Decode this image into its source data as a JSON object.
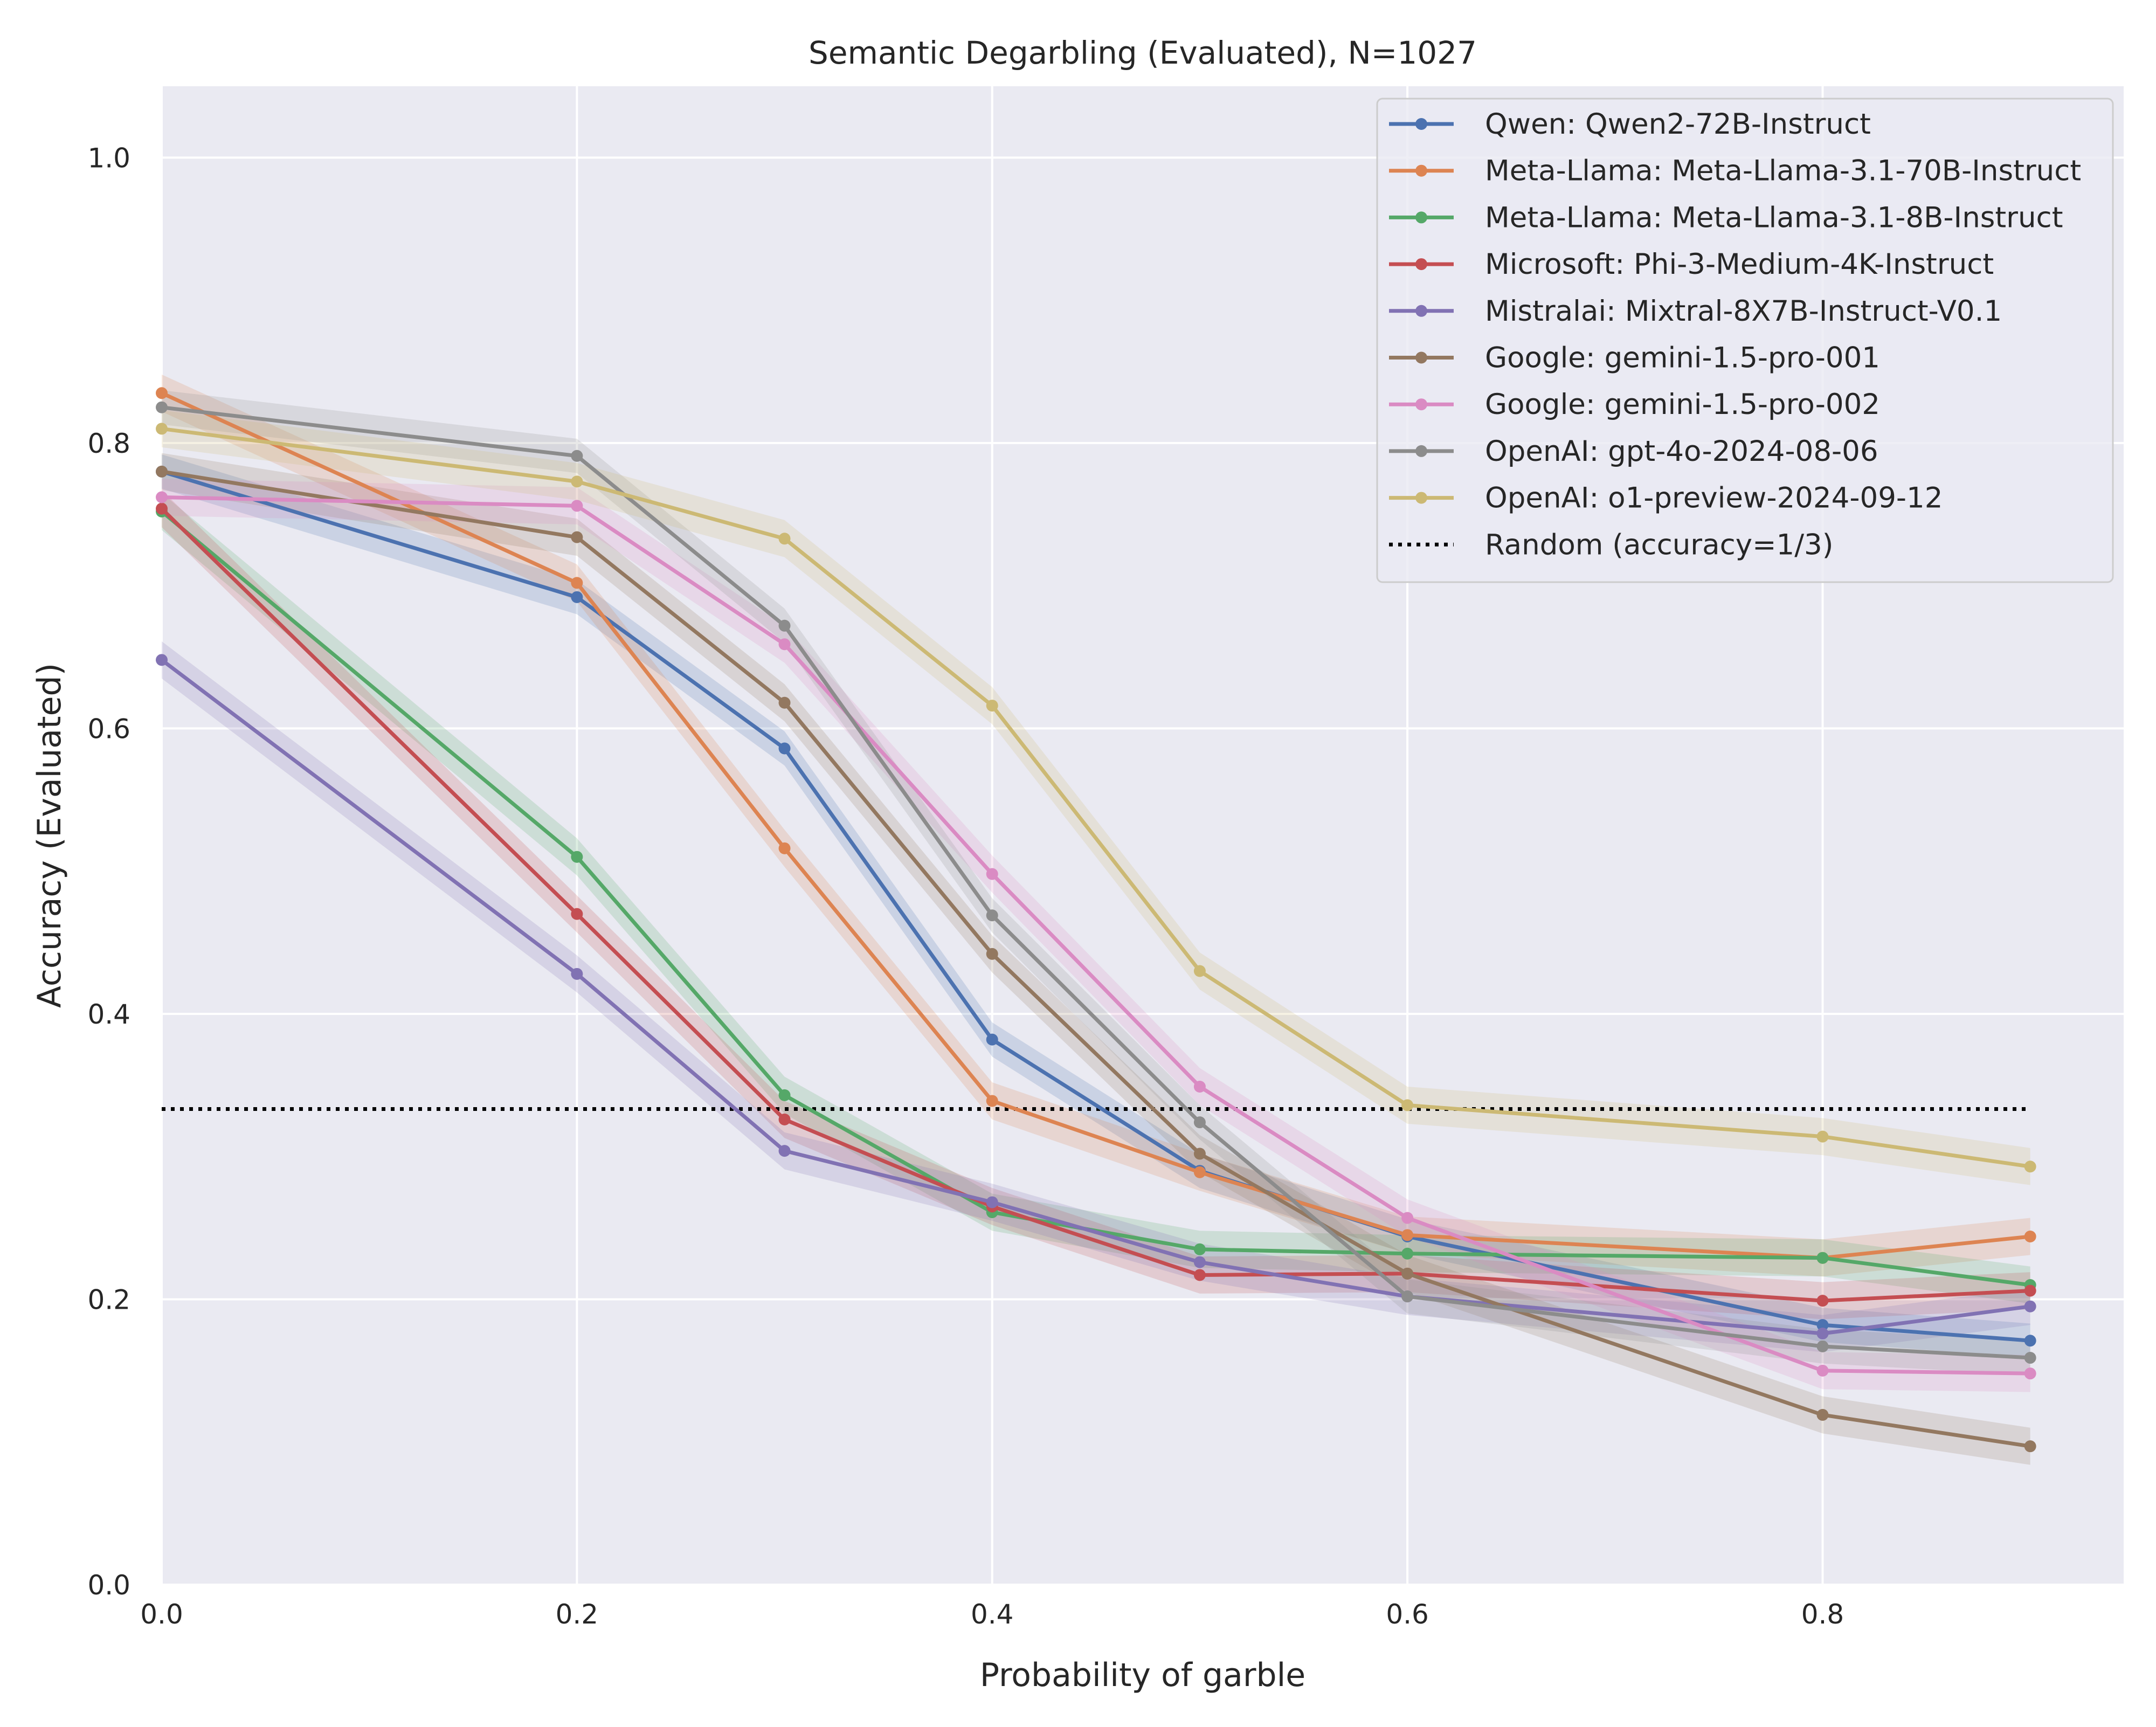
{
  "chart_data": {
    "type": "line",
    "title": "Semantic Degarbling (Evaluated), N=1027",
    "xlabel": "Probability of garble",
    "ylabel": "Accuracy (Evaluated)",
    "xlim": [
      0.0,
      0.945
    ],
    "ylim": [
      0.0,
      1.05
    ],
    "x_ticks": [
      "0.0",
      "0.2",
      "0.4",
      "0.6",
      "0.8"
    ],
    "y_ticks": [
      "0.0",
      "0.2",
      "0.4",
      "0.6",
      "0.8",
      "1.0"
    ],
    "grid": true,
    "legend_position": "top-right",
    "x": [
      0.0,
      0.2,
      0.3,
      0.4,
      0.5,
      0.6,
      0.8,
      0.9
    ],
    "series": [
      {
        "name": "Qwen: Qwen2-72B-Instruct",
        "color": "#4c72b0",
        "values": [
          0.78,
          0.692,
          0.586,
          0.382,
          0.29,
          0.244,
          0.182,
          0.171
        ],
        "band": 0.012
      },
      {
        "name": "Meta-Llama: Meta-Llama-3.1-70B-Instruct",
        "color": "#dd8452",
        "values": [
          0.835,
          0.702,
          0.516,
          0.339,
          0.289,
          0.245,
          0.229,
          0.244
        ],
        "band": 0.013
      },
      {
        "name": "Meta-Llama: Meta-Llama-3.1-8B-Instruct",
        "color": "#55a868",
        "values": [
          0.752,
          0.51,
          0.343,
          0.261,
          0.235,
          0.232,
          0.229,
          0.21
        ],
        "band": 0.013
      },
      {
        "name": "Microsoft: Phi-3-Medium-4K-Instruct",
        "color": "#c44e52",
        "values": [
          0.754,
          0.47,
          0.326,
          0.265,
          0.217,
          0.218,
          0.199,
          0.206
        ],
        "band": 0.013
      },
      {
        "name": "Mistralai: Mixtral-8X7B-Instruct-V0.1",
        "color": "#8172b3",
        "values": [
          0.648,
          0.428,
          0.304,
          0.268,
          0.226,
          0.202,
          0.176,
          0.195
        ],
        "band": 0.013
      },
      {
        "name": "Google: gemini-1.5-pro-001",
        "color": "#937860",
        "values": [
          0.78,
          0.734,
          0.618,
          0.442,
          0.302,
          0.218,
          0.119,
          0.097
        ],
        "band": 0.013
      },
      {
        "name": "Google: gemini-1.5-pro-002",
        "color": "#da8bc3",
        "values": [
          0.762,
          0.756,
          0.659,
          0.498,
          0.349,
          0.257,
          0.15,
          0.148
        ],
        "band": 0.013
      },
      {
        "name": "OpenAI: gpt-4o-2024-08-06",
        "color": "#8c8c8c",
        "values": [
          0.825,
          0.791,
          0.672,
          0.469,
          0.324,
          0.202,
          0.167,
          0.159
        ],
        "band": 0.012
      },
      {
        "name": "OpenAI: o1-preview-2024-09-12",
        "color": "#ccb974",
        "values": [
          0.81,
          0.773,
          0.733,
          0.616,
          0.43,
          0.336,
          0.314,
          0.293
        ],
        "band": 0.013
      }
    ],
    "reference_line": {
      "name": "Random (accuracy=1/3)",
      "value": 0.3333,
      "x_range": [
        0.0,
        0.9
      ],
      "style": "dotted",
      "color": "#000000"
    }
  }
}
